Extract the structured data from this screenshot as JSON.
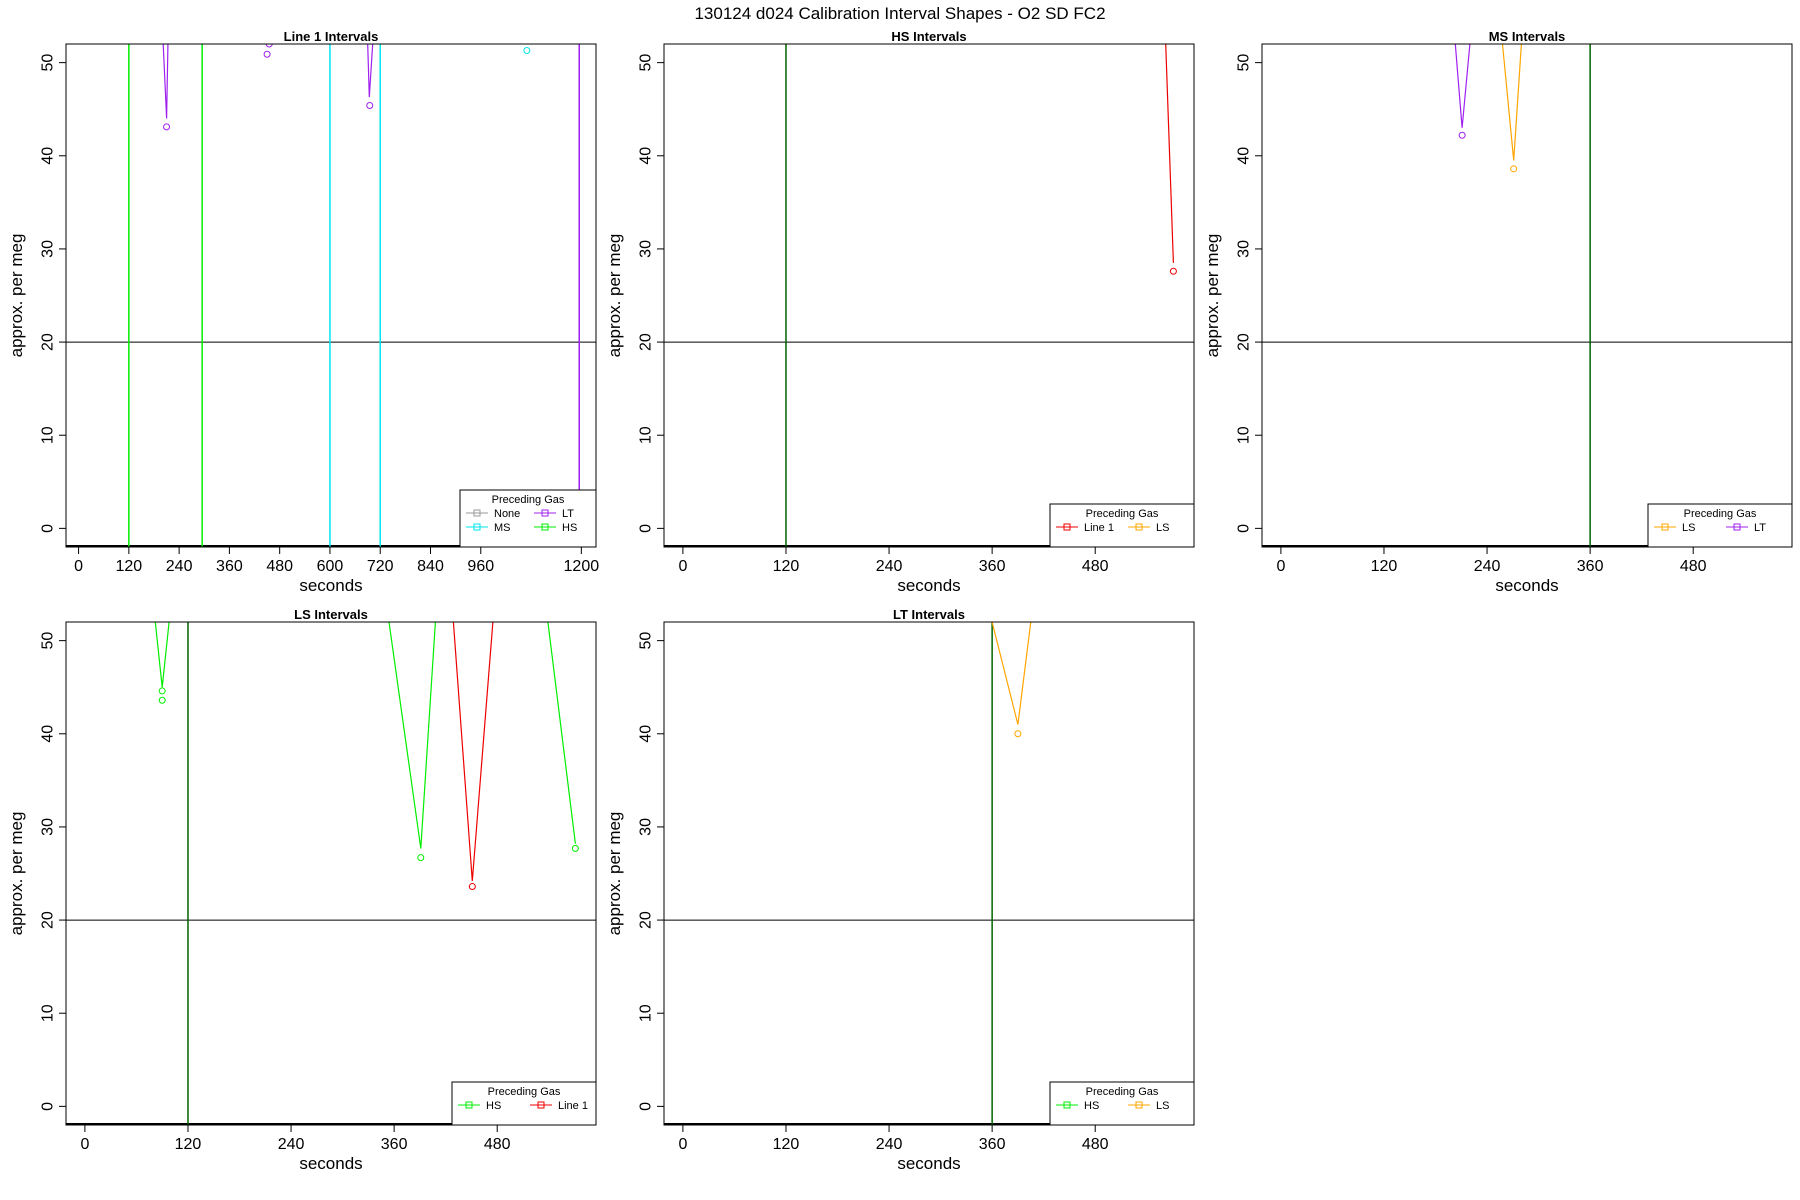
{
  "figure": {
    "title": "130124   d024   Calibration Interval Shapes - O2 SD FC2"
  },
  "colors": {
    "None": "#999999",
    "MS": "#00e5ee",
    "LT": "#a020f0",
    "HS": "#00ee00",
    "Line 1": "#ee0000",
    "LS": "#ffa500",
    "marker_line": "#006400",
    "ref_line": "#000000"
  },
  "chart_data": [
    {
      "type": "line",
      "title": "Line 1 Intervals",
      "xlabel": "seconds",
      "ylabel": "approx. per meg",
      "xlim": [
        -30,
        1235
      ],
      "ylim": [
        -2,
        52
      ],
      "xticks": [
        0,
        120,
        240,
        360,
        480,
        600,
        720,
        840,
        960,
        1200
      ],
      "yticks": [
        0,
        10,
        20,
        30,
        40,
        50
      ],
      "hline": 20,
      "vlines": [
        {
          "x": 120,
          "color": "#00ee00"
        },
        {
          "x": 295,
          "color": "#00ee00"
        },
        {
          "x": 600,
          "color": "#00e5ee"
        },
        {
          "x": 720,
          "color": "#00e5ee"
        },
        {
          "x": 1195,
          "color": "#a020f0"
        }
      ],
      "series": [
        {
          "name": "LT",
          "color": "#a020f0",
          "x": [
            200,
            202,
            210,
            215
          ],
          "y": [
            56,
            52,
            44,
            56
          ]
        },
        {
          "name": "LT",
          "color": "#a020f0",
          "x": [
            682,
            690,
            694,
            702,
            708
          ],
          "y": [
            56,
            52,
            46.3,
            52,
            56
          ]
        },
        {
          "name": "LT",
          "color": "#a020f0",
          "x": [
            1195,
            1195
          ],
          "y": [
            56,
            4
          ]
        }
      ],
      "points": [
        {
          "series": "LT",
          "color": "#a020f0",
          "x": 210,
          "y": 43.1
        },
        {
          "series": "LT",
          "color": "#a020f0",
          "x": 450,
          "y": 50.9
        },
        {
          "series": "LT",
          "color": "#a020f0",
          "x": 455,
          "y": 52
        },
        {
          "series": "LT",
          "color": "#a020f0",
          "x": 695,
          "y": 45.4
        },
        {
          "series": "MS",
          "color": "#00e5ee",
          "x": 1070,
          "y": 51.3
        }
      ],
      "legend": {
        "title": "Preceding Gas",
        "placement": "bottom-right",
        "columns": 2,
        "entries": [
          {
            "name": "None",
            "color": "#999999"
          },
          {
            "name": "LT",
            "color": "#a020f0"
          },
          {
            "name": "MS",
            "color": "#00e5ee"
          },
          {
            "name": "HS",
            "color": "#00ee00"
          }
        ]
      }
    },
    {
      "type": "line",
      "title": "HS Intervals",
      "xlabel": "seconds",
      "ylabel": "approx. per meg",
      "xlim": [
        -22,
        595
      ],
      "ylim": [
        -2,
        52
      ],
      "xticks": [
        0,
        120,
        240,
        360,
        480
      ],
      "yticks": [
        0,
        10,
        20,
        30,
        40,
        50
      ],
      "hline": 20,
      "vlines": [
        {
          "x": 120,
          "color": "#006400"
        }
      ],
      "series": [
        {
          "name": "Line 1",
          "color": "#ee0000",
          "x": [
            560,
            562,
            571
          ],
          "y": [
            60,
            52,
            28.5
          ]
        }
      ],
      "points": [
        {
          "series": "Line 1",
          "color": "#ee0000",
          "x": 571,
          "y": 27.6
        }
      ],
      "legend": {
        "title": "Preceding Gas",
        "placement": "bottom-right",
        "columns": 2,
        "entries": [
          {
            "name": "Line 1",
            "color": "#ee0000"
          },
          {
            "name": "LS",
            "color": "#ffa500"
          }
        ]
      }
    },
    {
      "type": "line",
      "title": "MS Intervals",
      "xlabel": "seconds",
      "ylabel": "approx. per meg",
      "xlim": [
        -22,
        595
      ],
      "ylim": [
        -2,
        52
      ],
      "xticks": [
        0,
        120,
        240,
        360,
        480
      ],
      "yticks": [
        0,
        10,
        20,
        30,
        40,
        50
      ],
      "hline": 20,
      "vlines": [
        {
          "x": 360,
          "color": "#006400"
        }
      ],
      "series": [
        {
          "name": "LT",
          "color": "#a020f0",
          "x": [
            200,
            203,
            211,
            220,
            225
          ],
          "y": [
            58,
            52,
            43,
            52,
            58
          ]
        },
        {
          "name": "LS",
          "color": "#ffa500",
          "x": [
            255,
            258,
            271,
            280,
            284
          ],
          "y": [
            58,
            52,
            39.5,
            52,
            58
          ]
        }
      ],
      "points": [
        {
          "series": "LT",
          "color": "#a020f0",
          "x": 211,
          "y": 42.2
        },
        {
          "series": "LS",
          "color": "#ffa500",
          "x": 271,
          "y": 38.6
        }
      ],
      "legend": {
        "title": "Preceding Gas",
        "placement": "bottom-right",
        "columns": 2,
        "entries": [
          {
            "name": "LS",
            "color": "#ffa500"
          },
          {
            "name": "LT",
            "color": "#a020f0"
          }
        ]
      }
    },
    {
      "type": "line",
      "title": "LS Intervals",
      "xlabel": "seconds",
      "ylabel": "approx. per meg",
      "xlim": [
        -22,
        595
      ],
      "ylim": [
        -2,
        52
      ],
      "xticks": [
        0,
        120,
        240,
        360,
        480
      ],
      "yticks": [
        0,
        10,
        20,
        30,
        40,
        50
      ],
      "hline": 20,
      "vlines": [
        {
          "x": 120,
          "color": "#006400"
        }
      ],
      "series": [
        {
          "name": "HS",
          "color": "#00ee00",
          "x": [
            78,
            82,
            90,
            98,
            102
          ],
          "y": [
            58,
            52,
            45,
            52,
            58
          ]
        },
        {
          "name": "HS",
          "color": "#00ee00",
          "x": [
            350,
            354,
            391,
            408,
            412
          ],
          "y": [
            58,
            52,
            27.7,
            52,
            58
          ]
        },
        {
          "name": "Line 1",
          "color": "#ee0000",
          "x": [
            425,
            429,
            451,
            475,
            479
          ],
          "y": [
            58,
            52,
            24.2,
            52,
            58
          ]
        },
        {
          "name": "HS",
          "color": "#00ee00",
          "x": [
            535,
            539,
            571
          ],
          "y": [
            58,
            52,
            28.2
          ]
        }
      ],
      "points": [
        {
          "series": "HS",
          "color": "#00ee00",
          "x": 90,
          "y": 44.6
        },
        {
          "series": "HS",
          "color": "#00ee00",
          "x": 90,
          "y": 43.6
        },
        {
          "series": "HS",
          "color": "#00ee00",
          "x": 391,
          "y": 26.7
        },
        {
          "series": "Line 1",
          "color": "#ee0000",
          "x": 451,
          "y": 23.6
        },
        {
          "series": "HS",
          "color": "#00ee00",
          "x": 571,
          "y": 27.7
        }
      ],
      "legend": {
        "title": "Preceding Gas",
        "placement": "bottom-right",
        "columns": 2,
        "entries": [
          {
            "name": "HS",
            "color": "#00ee00"
          },
          {
            "name": "Line 1",
            "color": "#ee0000"
          }
        ]
      }
    },
    {
      "type": "line",
      "title": "LT Intervals",
      "xlabel": "seconds",
      "ylabel": "approx. per meg",
      "xlim": [
        -22,
        595
      ],
      "ylim": [
        -2,
        52
      ],
      "xticks": [
        0,
        120,
        240,
        360,
        480
      ],
      "yticks": [
        0,
        10,
        20,
        30,
        40,
        50
      ],
      "hline": 20,
      "vlines": [
        {
          "x": 360,
          "color": "#006400"
        }
      ],
      "series": [
        {
          "name": "LS",
          "color": "#ffa500",
          "x": [
            360,
            390,
            405,
            408
          ],
          "y": [
            52,
            41,
            52,
            56
          ]
        }
      ],
      "points": [
        {
          "series": "LS",
          "color": "#ffa500",
          "x": 390,
          "y": 40
        }
      ],
      "legend": {
        "title": "Preceding Gas",
        "placement": "bottom-right",
        "columns": 2,
        "entries": [
          {
            "name": "HS",
            "color": "#00ee00"
          },
          {
            "name": "LS",
            "color": "#ffa500"
          }
        ]
      }
    }
  ]
}
